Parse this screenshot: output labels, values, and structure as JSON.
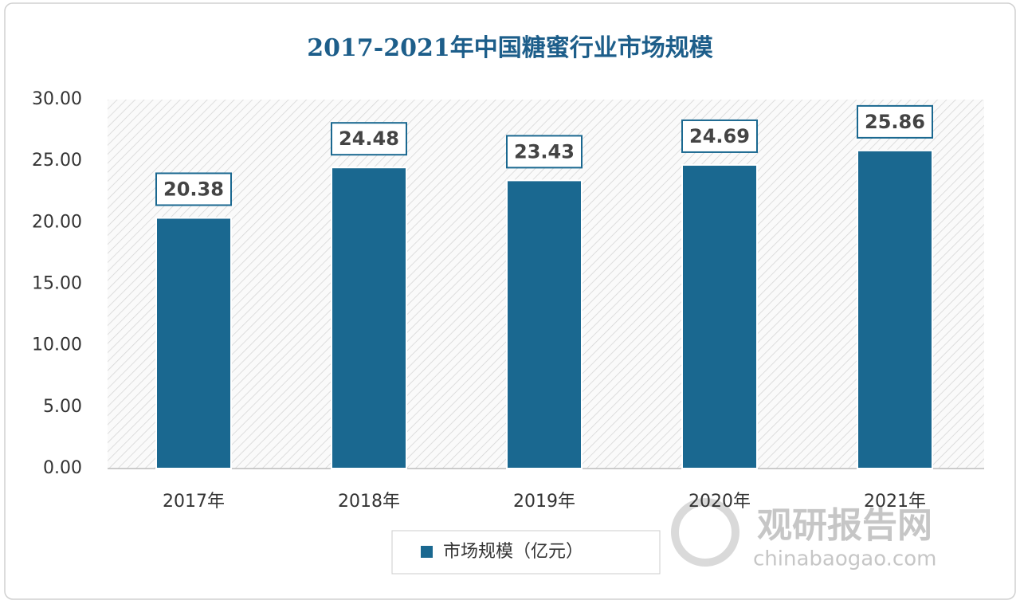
{
  "chart_data": {
    "type": "bar",
    "title": "2017-2021年中国糖蜜行业市场规模",
    "categories": [
      "2017年",
      "2018年",
      "2019年",
      "2020年",
      "2021年"
    ],
    "series": [
      {
        "name": "市场规模（亿元）",
        "color": "#1a6890",
        "values": [
          20.38,
          24.48,
          23.43,
          24.69,
          25.86
        ]
      }
    ],
    "ylim": [
      0,
      30
    ],
    "yticks": [
      {
        "value": 0,
        "label": "0.00"
      },
      {
        "value": 5,
        "label": "5.00"
      },
      {
        "value": 10,
        "label": "10.00"
      },
      {
        "value": 15,
        "label": "15.00"
      },
      {
        "value": 20,
        "label": "20.00"
      },
      {
        "value": 25,
        "label": "25.00"
      },
      {
        "value": 30,
        "label": "30.00"
      }
    ],
    "grid": false,
    "watermark": {
      "name": "观研报告网",
      "url": "chinabaogao.com"
    }
  }
}
